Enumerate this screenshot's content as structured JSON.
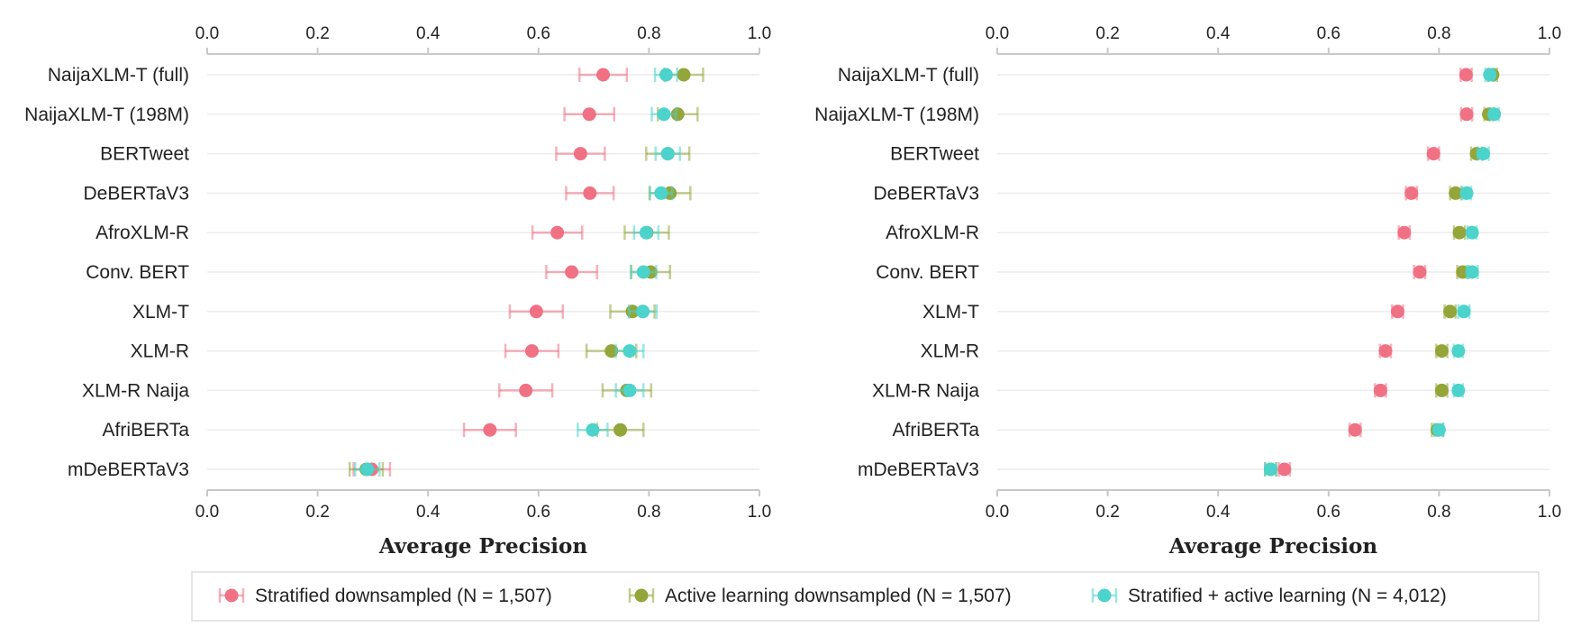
{
  "legend": {
    "placement": "bottom",
    "items": [
      {
        "label": "Stratified downsampled (N = 1,507)",
        "color": "#f07184"
      },
      {
        "label": "Active learning downsampled (N = 1,507)",
        "color": "#94a53a"
      },
      {
        "label": "Stratified + active learning (N = 4,012)",
        "color": "#4bd3cc"
      }
    ]
  },
  "chart_data": [
    {
      "type": "scatter",
      "xlabel": "Average Precision",
      "xlim": [
        0,
        1
      ],
      "xticks": [
        "0.0",
        "0.2",
        "0.4",
        "0.6",
        "0.8",
        "1.0"
      ],
      "grid": "horizontal",
      "categories": [
        "NaijaXLM-T (full)",
        "NaijaXLM-T (198M)",
        "BERTweet",
        "DeBERTaV3",
        "AfroXLM-R",
        "Conv. BERT",
        "XLM-T",
        "XLM-R",
        "XLM-R Naija",
        "AfriBERTa",
        "mDeBERTaV3"
      ],
      "series": [
        {
          "name": "Stratified downsampled (N = 1,507)",
          "color": "#f07184",
          "values": [
            0.717,
            0.692,
            0.676,
            0.693,
            0.634,
            0.66,
            0.596,
            0.588,
            0.577,
            0.512,
            0.298
          ],
          "err": [
            0.043,
            0.045,
            0.044,
            0.043,
            0.045,
            0.046,
            0.048,
            0.048,
            0.048,
            0.047,
            0.033
          ]
        },
        {
          "name": "Active learning downsampled (N = 1,507)",
          "color": "#94a53a",
          "values": [
            0.863,
            0.852,
            0.834,
            0.838,
            0.796,
            0.803,
            0.77,
            0.732,
            0.76,
            0.748,
            0.288
          ],
          "err": [
            0.035,
            0.036,
            0.039,
            0.037,
            0.04,
            0.035,
            0.04,
            0.045,
            0.044,
            0.042,
            0.03
          ]
        },
        {
          "name": "Stratified + active learning (N = 4,012)",
          "color": "#4bd3cc",
          "values": [
            0.831,
            0.827,
            0.834,
            0.822,
            0.795,
            0.79,
            0.789,
            0.765,
            0.765,
            0.698,
            0.29
          ],
          "err": [
            0.02,
            0.022,
            0.022,
            0.02,
            0.022,
            0.023,
            0.025,
            0.025,
            0.025,
            0.027,
            0.022
          ]
        }
      ]
    },
    {
      "type": "scatter",
      "xlabel": "Average Precision",
      "xlim": [
        0,
        1
      ],
      "xticks": [
        "0.0",
        "0.2",
        "0.4",
        "0.6",
        "0.8",
        "1.0"
      ],
      "grid": "horizontal",
      "categories": [
        "NaijaXLM-T (full)",
        "NaijaXLM-T (198M)",
        "BERTweet",
        "DeBERTaV3",
        "AfroXLM-R",
        "Conv. BERT",
        "XLM-T",
        "XLM-R",
        "XLM-R Naija",
        "AfriBERTa",
        "mDeBERTaV3"
      ],
      "series": [
        {
          "name": "Stratified downsampled (N = 1,507)",
          "color": "#f07184",
          "values": [
            0.849,
            0.85,
            0.79,
            0.75,
            0.737,
            0.765,
            0.725,
            0.703,
            0.694,
            0.648,
            0.52
          ],
          "err": [
            0.01,
            0.01,
            0.01,
            0.01,
            0.01,
            0.01,
            0.01,
            0.01,
            0.01,
            0.01,
            0.01
          ]
        },
        {
          "name": "Active learning downsampled (N = 1,507)",
          "color": "#94a53a",
          "values": [
            0.897,
            0.89,
            0.868,
            0.83,
            0.837,
            0.843,
            0.82,
            0.805,
            0.805,
            0.797,
            0.495
          ],
          "err": [
            0.008,
            0.008,
            0.01,
            0.01,
            0.01,
            0.01,
            0.01,
            0.01,
            0.01,
            0.01,
            0.01
          ]
        },
        {
          "name": "Stratified + active learning (N = 4,012)",
          "color": "#4bd3cc",
          "values": [
            0.892,
            0.9,
            0.88,
            0.85,
            0.86,
            0.86,
            0.845,
            0.835,
            0.835,
            0.8,
            0.495
          ],
          "err": [
            0.008,
            0.008,
            0.01,
            0.008,
            0.008,
            0.01,
            0.01,
            0.008,
            0.008,
            0.008,
            0.01
          ]
        }
      ]
    }
  ]
}
